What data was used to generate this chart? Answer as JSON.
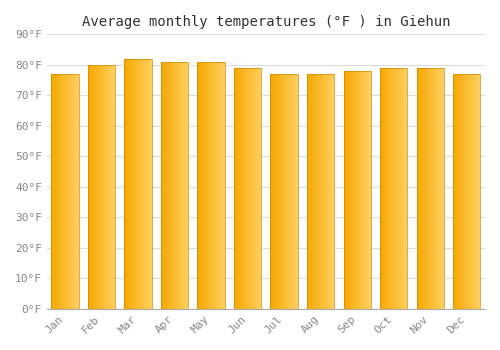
{
  "title": "Average monthly temperatures (°F ) in Giehun",
  "months": [
    "Jan",
    "Feb",
    "Mar",
    "Apr",
    "May",
    "Jun",
    "Jul",
    "Aug",
    "Sep",
    "Oct",
    "Nov",
    "Dec"
  ],
  "values": [
    77,
    80,
    82,
    81,
    81,
    79,
    77,
    77,
    78,
    79,
    79,
    77
  ],
  "grad_color_left": "#F5A800",
  "grad_color_right": "#FFD060",
  "background_color": "#FFFFFF",
  "grid_color": "#DDDDDD",
  "ylim": [
    0,
    90
  ],
  "ytick_step": 10,
  "font_family": "monospace",
  "title_fontsize": 10,
  "tick_fontsize": 8,
  "bar_width": 0.75
}
